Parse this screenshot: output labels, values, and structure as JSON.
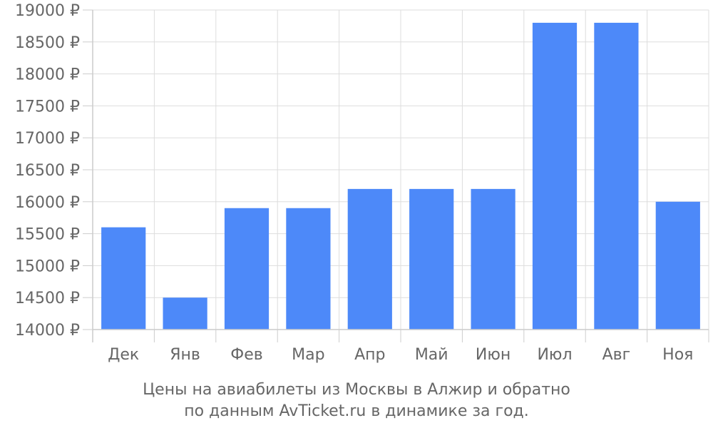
{
  "chart_data": {
    "type": "bar",
    "categories": [
      "Дек",
      "Янв",
      "Фев",
      "Мар",
      "Апр",
      "Май",
      "Июн",
      "Июл",
      "Авг",
      "Ноя"
    ],
    "values": [
      15600,
      14500,
      15900,
      15900,
      16200,
      16200,
      16200,
      18800,
      18800,
      16000
    ],
    "ylim": [
      14000,
      19000
    ],
    "yticks": [
      14000,
      14500,
      15000,
      15500,
      16000,
      16500,
      17000,
      17500,
      18000,
      18500,
      19000
    ],
    "ytick_suffix": " ₽",
    "bar_color": "#4d89f9",
    "grid": true,
    "caption_line1": "Цены на авиабилеты из Москвы в Алжир и обратно",
    "caption_line2": "по данным AvTicket.ru в динамике за год."
  }
}
